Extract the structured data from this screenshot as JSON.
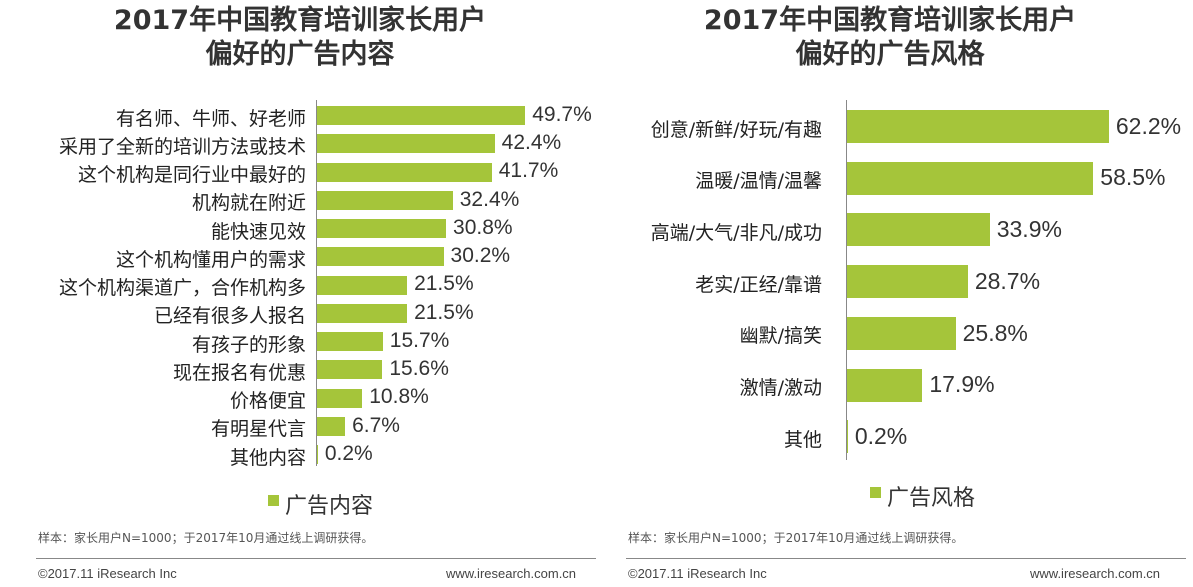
{
  "chart_data": [
    {
      "type": "bar",
      "orientation": "horizontal",
      "title": "2017年中国教育培训家长用户\n偏好的广告内容",
      "legend": "广告内容",
      "legend_placement": "bottom",
      "color": "#a5c53a",
      "categories": [
        "有名师、牛师、好老师",
        "采用了全新的培训方法或技术",
        "这个机构是同行业中最好的",
        "机构就在附近",
        "能快速见效",
        "这个机构懂用户的需求",
        "这个机构渠道广，合作机构多",
        "已经有很多人报名",
        "有孩子的形象",
        "现在报名有优惠",
        "价格便宜",
        "有明星代言",
        "其他内容"
      ],
      "values": [
        49.7,
        42.4,
        41.7,
        32.4,
        30.8,
        30.2,
        21.5,
        21.5,
        15.7,
        15.6,
        10.8,
        6.7,
        0.2
      ],
      "labels": [
        "49.7%",
        "42.4%",
        "41.7%",
        "32.4%",
        "30.8%",
        "30.2%",
        "21.5%",
        "21.5%",
        "15.7%",
        "15.6%",
        "10.8%",
        "6.7%",
        "0.2%"
      ]
    },
    {
      "type": "bar",
      "orientation": "horizontal",
      "title": "2017年中国教育培训家长用户\n偏好的广告风格",
      "legend": "广告风格",
      "legend_placement": "bottom",
      "color": "#a5c53a",
      "categories": [
        "创意/新鲜/好玩/有趣",
        "温暖/温情/温馨",
        "高端/大气/非凡/成功",
        "老实/正经/靠谱",
        "幽默/搞笑",
        "激情/激动",
        "其他"
      ],
      "values": [
        62.2,
        58.5,
        33.9,
        28.7,
        25.8,
        17.9,
        0.2
      ],
      "labels": [
        "62.2%",
        "58.5%",
        "33.9%",
        "28.7%",
        "25.8%",
        "17.9%",
        "0.2%"
      ]
    }
  ],
  "note": "样本：家长用户N=1000；于2017年10月通过线上调研获得。",
  "copyright": "©2017.11 iResearch Inc",
  "website": "www.iresearch.com.cn"
}
